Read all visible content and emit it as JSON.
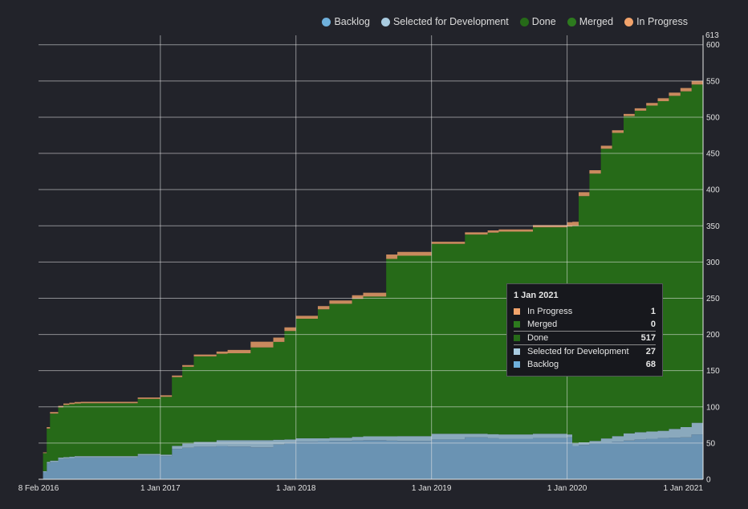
{
  "chart_data": {
    "type": "area",
    "stacked": true,
    "x_range": [
      "2016-02-08",
      "2021-01-01"
    ],
    "ylim": [
      0,
      613
    ],
    "y_max_label": "613",
    "y_ticks": [
      0,
      50,
      100,
      150,
      200,
      250,
      300,
      350,
      400,
      450,
      500,
      550,
      600
    ],
    "x_ticks": [
      {
        "date": "2016-02-08",
        "label": "8 Feb 2016"
      },
      {
        "date": "2017-01-01",
        "label": "1 Jan 2017"
      },
      {
        "date": "2018-01-01",
        "label": "1 Jan 2018"
      },
      {
        "date": "2019-01-01",
        "label": "1 Jan 2019"
      },
      {
        "date": "2020-01-01",
        "label": "1 Jan 2020"
      },
      {
        "date": "2021-01-01",
        "label": "1 Jan 2021"
      }
    ],
    "grid": true,
    "legend_position": "top-right",
    "legend": [
      {
        "name": "Backlog",
        "color": "#6fb0dc"
      },
      {
        "name": "Selected for Development",
        "color": "#a9cbe0"
      },
      {
        "name": "Done",
        "color": "#266a18"
      },
      {
        "name": "Merged",
        "color": "#2d7a1e"
      },
      {
        "name": "In Progress",
        "color": "#f2a36b"
      }
    ],
    "series": [
      {
        "name": "Backlog",
        "color": "#6a93b3",
        "points": [
          [
            "2016-02-08",
            0
          ],
          [
            "2016-02-20",
            10
          ],
          [
            "2016-03-01",
            22
          ],
          [
            "2016-04-01",
            28
          ],
          [
            "2016-05-15",
            30
          ],
          [
            "2016-09-01",
            30
          ],
          [
            "2016-11-01",
            33
          ],
          [
            "2017-01-01",
            32
          ],
          [
            "2017-02-01",
            42
          ],
          [
            "2017-04-01",
            45
          ],
          [
            "2017-06-01",
            46
          ],
          [
            "2017-09-01",
            44
          ],
          [
            "2017-11-01",
            48
          ],
          [
            "2018-01-01",
            52
          ],
          [
            "2018-04-01",
            53
          ],
          [
            "2018-07-01",
            54
          ],
          [
            "2018-10-01",
            53
          ],
          [
            "2019-01-01",
            55
          ],
          [
            "2019-04-01",
            58
          ],
          [
            "2019-07-01",
            56
          ],
          [
            "2019-10-01",
            57
          ],
          [
            "2020-01-01",
            58
          ],
          [
            "2020-01-15",
            46
          ],
          [
            "2020-03-01",
            50
          ],
          [
            "2020-05-01",
            52
          ],
          [
            "2020-07-01",
            55
          ],
          [
            "2020-09-01",
            57
          ],
          [
            "2020-11-01",
            58
          ],
          [
            "2020-12-01",
            62
          ],
          [
            "2021-01-01",
            68
          ]
        ]
      },
      {
        "name": "Selected for Development",
        "color": "#8aa9bd",
        "points": [
          [
            "2016-02-08",
            0
          ],
          [
            "2016-03-01",
            2
          ],
          [
            "2016-05-01",
            2
          ],
          [
            "2017-01-01",
            2
          ],
          [
            "2017-03-01",
            6
          ],
          [
            "2017-06-01",
            8
          ],
          [
            "2017-09-01",
            10
          ],
          [
            "2017-12-01",
            5
          ],
          [
            "2018-03-01",
            4
          ],
          [
            "2018-06-01",
            5
          ],
          [
            "2018-09-01",
            6
          ],
          [
            "2019-01-01",
            8
          ],
          [
            "2019-04-01",
            5
          ],
          [
            "2019-07-01",
            6
          ],
          [
            "2019-10-01",
            6
          ],
          [
            "2020-01-01",
            4
          ],
          [
            "2020-03-01",
            3
          ],
          [
            "2020-06-01",
            10
          ],
          [
            "2020-09-01",
            10
          ],
          [
            "2020-12-01",
            16
          ],
          [
            "2021-01-01",
            27
          ]
        ]
      },
      {
        "name": "Done",
        "color": "#266a18",
        "points": [
          [
            "2016-02-08",
            0
          ],
          [
            "2016-02-20",
            25
          ],
          [
            "2016-03-10",
            65
          ],
          [
            "2016-04-15",
            72
          ],
          [
            "2016-06-01",
            73
          ],
          [
            "2016-09-01",
            73
          ],
          [
            "2016-11-01",
            76
          ],
          [
            "2017-01-01",
            80
          ],
          [
            "2017-02-01",
            95
          ],
          [
            "2017-04-01",
            118
          ],
          [
            "2017-07-01",
            120
          ],
          [
            "2017-09-01",
            128
          ],
          [
            "2017-11-01",
            135
          ],
          [
            "2018-01-01",
            165
          ],
          [
            "2018-04-01",
            185
          ],
          [
            "2018-07-01",
            193
          ],
          [
            "2018-09-01",
            245
          ],
          [
            "2019-01-01",
            262
          ],
          [
            "2019-04-01",
            275
          ],
          [
            "2019-07-01",
            280
          ],
          [
            "2019-10-01",
            285
          ],
          [
            "2020-01-01",
            287
          ],
          [
            "2020-01-15",
            300
          ],
          [
            "2020-02-01",
            340
          ],
          [
            "2020-04-01",
            400
          ],
          [
            "2020-06-01",
            438
          ],
          [
            "2020-08-01",
            450
          ],
          [
            "2020-10-01",
            460
          ],
          [
            "2020-12-01",
            467
          ],
          [
            "2021-01-01",
            517
          ]
        ]
      },
      {
        "name": "Merged",
        "color": "#2d7a1e",
        "points": [
          [
            "2016-02-08",
            0
          ],
          [
            "2021-01-01",
            0
          ]
        ]
      },
      {
        "name": "In Progress",
        "color": "#c98a5e",
        "points": [
          [
            "2016-02-08",
            0
          ],
          [
            "2016-03-01",
            2
          ],
          [
            "2017-01-01",
            2
          ],
          [
            "2017-06-01",
            3
          ],
          [
            "2017-09-01",
            8
          ],
          [
            "2018-01-01",
            4
          ],
          [
            "2018-06-01",
            5
          ],
          [
            "2018-09-01",
            6
          ],
          [
            "2019-01-01",
            3
          ],
          [
            "2019-06-01",
            3
          ],
          [
            "2019-10-01",
            3
          ],
          [
            "2020-01-01",
            6
          ],
          [
            "2020-06-01",
            3
          ],
          [
            "2020-12-01",
            5
          ],
          [
            "2021-01-01",
            1
          ]
        ]
      }
    ],
    "tooltip": {
      "title": "1 Jan 2021",
      "rows": [
        {
          "name": "In Progress",
          "value": "1",
          "color": "#f2a36b"
        },
        {
          "name": "Merged",
          "value": "0",
          "color": "#2d7a1e"
        },
        {
          "name": "Done",
          "value": "517",
          "color": "#266a18"
        },
        {
          "name": "Selected for Development",
          "value": "27",
          "color": "#a9cbe0"
        },
        {
          "name": "Backlog",
          "value": "68",
          "color": "#6fb0dc"
        }
      ]
    }
  }
}
